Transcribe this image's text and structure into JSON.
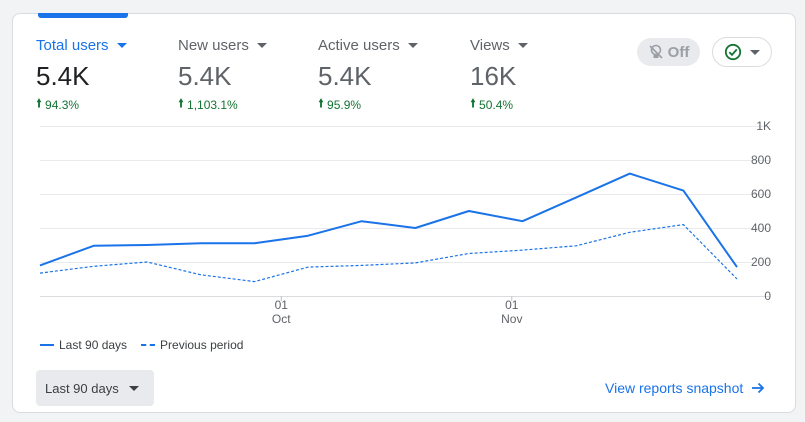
{
  "metrics": [
    {
      "label": "Total users",
      "value": "5.4K",
      "change": "94.3%",
      "active": true
    },
    {
      "label": "New users",
      "value": "5.4K",
      "change": "1,103.1%",
      "active": false
    },
    {
      "label": "Active users",
      "value": "5.4K",
      "change": "95.9%",
      "active": false
    },
    {
      "label": "Views",
      "value": "16K",
      "change": "50.4%",
      "active": false
    }
  ],
  "toggle": {
    "label": "Off"
  },
  "colors": {
    "accent": "#1a73e8",
    "positive": "#137333",
    "status_ok": "#137333"
  },
  "legend": {
    "current": "Last 90 days",
    "previous": "Previous period"
  },
  "date_range": {
    "label": "Last 90 days"
  },
  "snapshot_link": {
    "label": "View reports snapshot"
  },
  "chart_data": {
    "type": "line",
    "x": [
      0,
      1,
      2,
      3,
      4,
      5,
      6,
      7,
      8,
      9,
      10,
      11,
      12,
      13
    ],
    "x_tick_labels": [
      {
        "index": 4.5,
        "day": "01",
        "month": "Oct"
      },
      {
        "index": 8.8,
        "day": "01",
        "month": "Nov"
      }
    ],
    "y_tick_labels": [
      "0",
      "200",
      "400",
      "600",
      "800",
      "1K"
    ],
    "ylim": [
      0,
      1000
    ],
    "series": [
      {
        "name": "Last 90 days",
        "style": "solid",
        "values": [
          180,
          295,
          300,
          310,
          310,
          355,
          440,
          400,
          500,
          440,
          580,
          720,
          620,
          170
        ]
      },
      {
        "name": "Previous period",
        "style": "dashed",
        "values": [
          135,
          175,
          200,
          125,
          85,
          170,
          180,
          195,
          250,
          270,
          295,
          375,
          420,
          100
        ]
      }
    ]
  }
}
